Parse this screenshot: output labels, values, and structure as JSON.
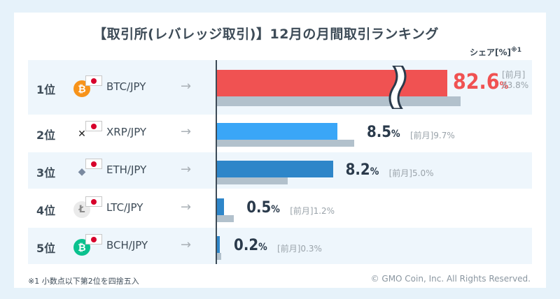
{
  "title": "【取引所(レバレッジ取引)】12月の月間取引ランキング",
  "share_label": "シェア[%]",
  "share_note_mark": "※1",
  "footnote": "※1 小数点以下第2位を四捨五入",
  "copyright": "© GMO Coin, Inc. All Rights Reserved.",
  "colors": {
    "current_default": "#2e86c9",
    "current_top": "#f05252",
    "prev": "#b2c1cc",
    "row_shade": "#eef6fc"
  },
  "chart_data": {
    "type": "bar",
    "title": "【取引所(レバレッジ取引)】12月の月間取引ランキング",
    "ylabel": "シェア[%]",
    "prev_label": "[前月]",
    "axis_break": true,
    "series": [
      {
        "name": "",
        "values": [
          82.6,
          8.5,
          8.2,
          0.5,
          0.2
        ]
      },
      {
        "name": "[前月]",
        "values": [
          83.8,
          9.7,
          5.0,
          1.2,
          0.3
        ]
      }
    ],
    "rows": [
      {
        "rank": "1位",
        "pair": "BTC/JPY",
        "icon": "bitcoin-icon",
        "current": 82.6,
        "current_text": "82.6",
        "prev": 83.8,
        "prev_text": "83.8%",
        "bar_color": "#f05252"
      },
      {
        "rank": "2位",
        "pair": "XRP/JPY",
        "icon": "xrp-icon",
        "current": 8.5,
        "current_text": "8.5",
        "prev": 9.7,
        "prev_text": "9.7%",
        "bar_color": "#3aa6f7"
      },
      {
        "rank": "3位",
        "pair": "ETH/JPY",
        "icon": "ethereum-icon",
        "current": 8.2,
        "current_text": "8.2",
        "prev": 5.0,
        "prev_text": "5.0%",
        "bar_color": "#2e86c9"
      },
      {
        "rank": "4位",
        "pair": "LTC/JPY",
        "icon": "litecoin-icon",
        "current": 0.5,
        "current_text": "0.5",
        "prev": 1.2,
        "prev_text": "1.2%",
        "bar_color": "#2e86c9"
      },
      {
        "rank": "5位",
        "pair": "BCH/JPY",
        "icon": "bitcoin-cash-icon",
        "current": 0.2,
        "current_text": "0.2",
        "prev": 0.3,
        "prev_text": "0.3%",
        "bar_color": "#2e86c9"
      }
    ],
    "pct_symbol": "%"
  }
}
